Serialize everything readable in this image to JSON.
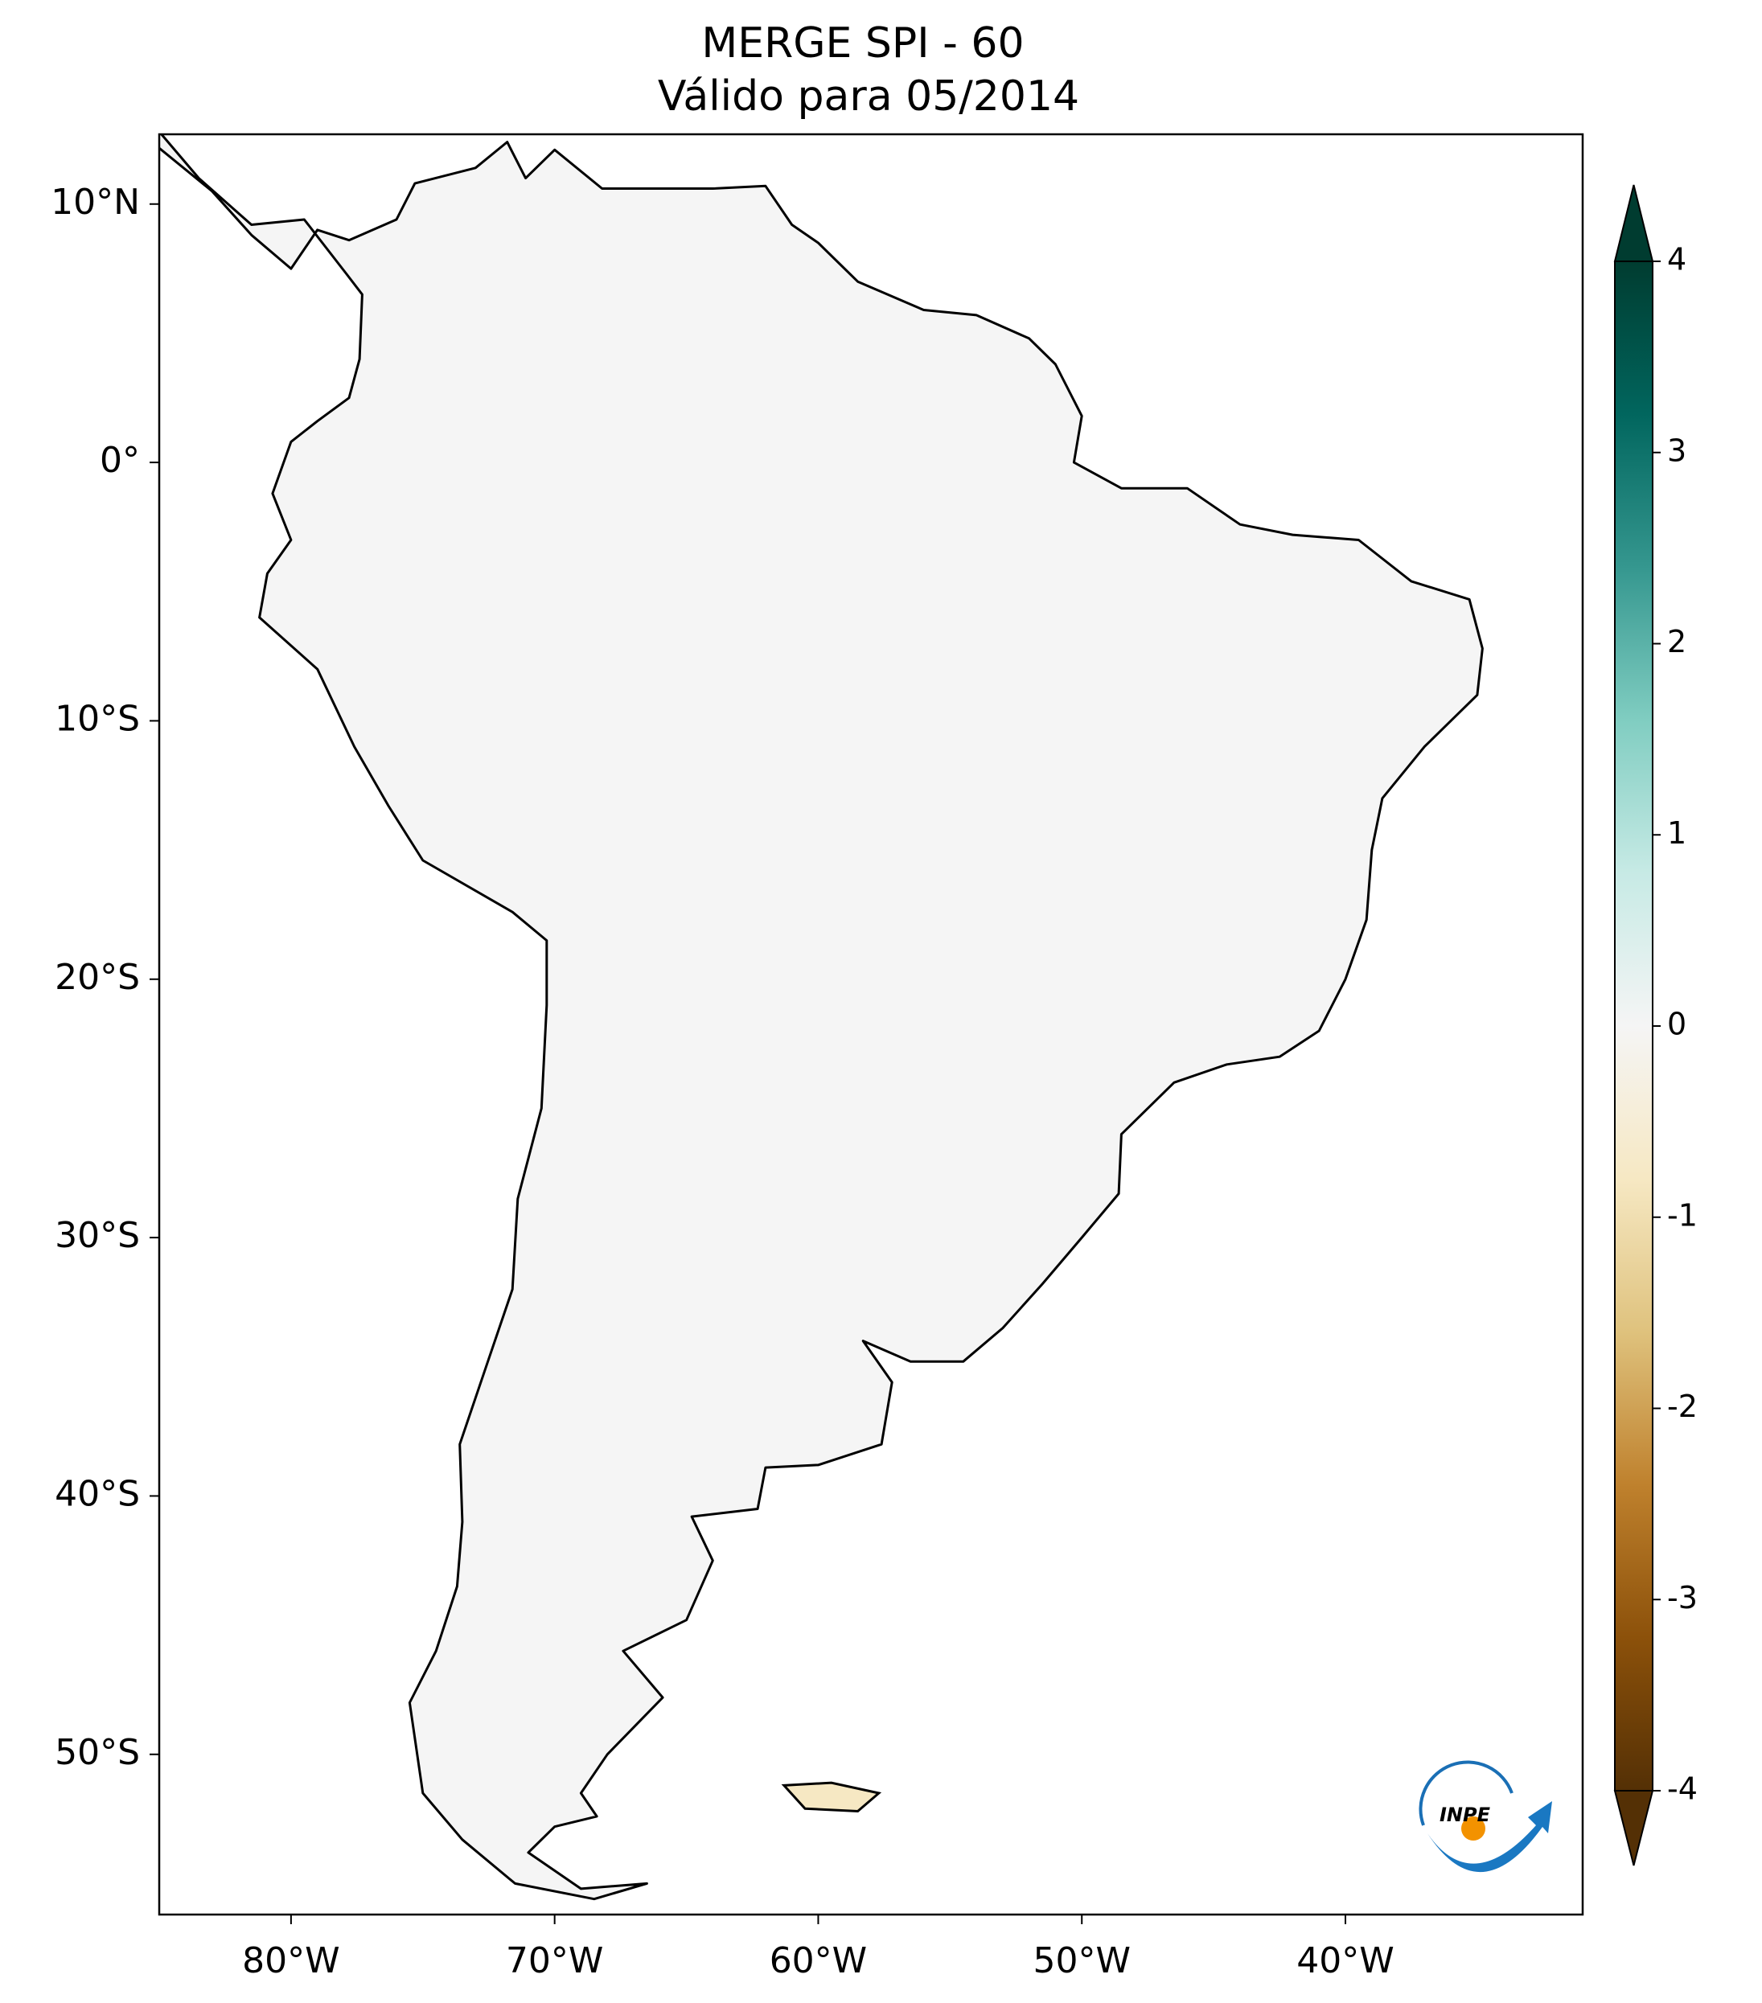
{
  "chart_data": {
    "type": "map",
    "title": "MERGE   SPI - 60",
    "subtitle": "Válido para 05/2014",
    "xlim": [
      -85,
      -31
    ],
    "ylim": [
      -56.2,
      12.7
    ],
    "xticks": [
      {
        "value": -80,
        "label": "80°W"
      },
      {
        "value": -70,
        "label": "70°W"
      },
      {
        "value": -60,
        "label": "60°W"
      },
      {
        "value": -50,
        "label": "50°W"
      },
      {
        "value": -40,
        "label": "40°W"
      }
    ],
    "yticks": [
      {
        "value": 10,
        "label": "10°N"
      },
      {
        "value": 0,
        "label": "0°"
      },
      {
        "value": -10,
        "label": "10°S"
      },
      {
        "value": -20,
        "label": "20°S"
      },
      {
        "value": -30,
        "label": "30°S"
      },
      {
        "value": -40,
        "label": "40°S"
      },
      {
        "value": -50,
        "label": "50°S"
      }
    ],
    "colorbar": {
      "lim": [
        -4,
        4
      ],
      "ticks": [
        -4,
        -3,
        -2,
        -1,
        0,
        1,
        2,
        3,
        4
      ],
      "colors": [
        "#543005",
        "#8c510a",
        "#bf812d",
        "#dfc27d",
        "#f6e8c3",
        "#f5f5f5",
        "#c7eae5",
        "#80cdc1",
        "#35978f",
        "#01665e",
        "#003c30"
      ]
    },
    "logo": "INPE"
  }
}
